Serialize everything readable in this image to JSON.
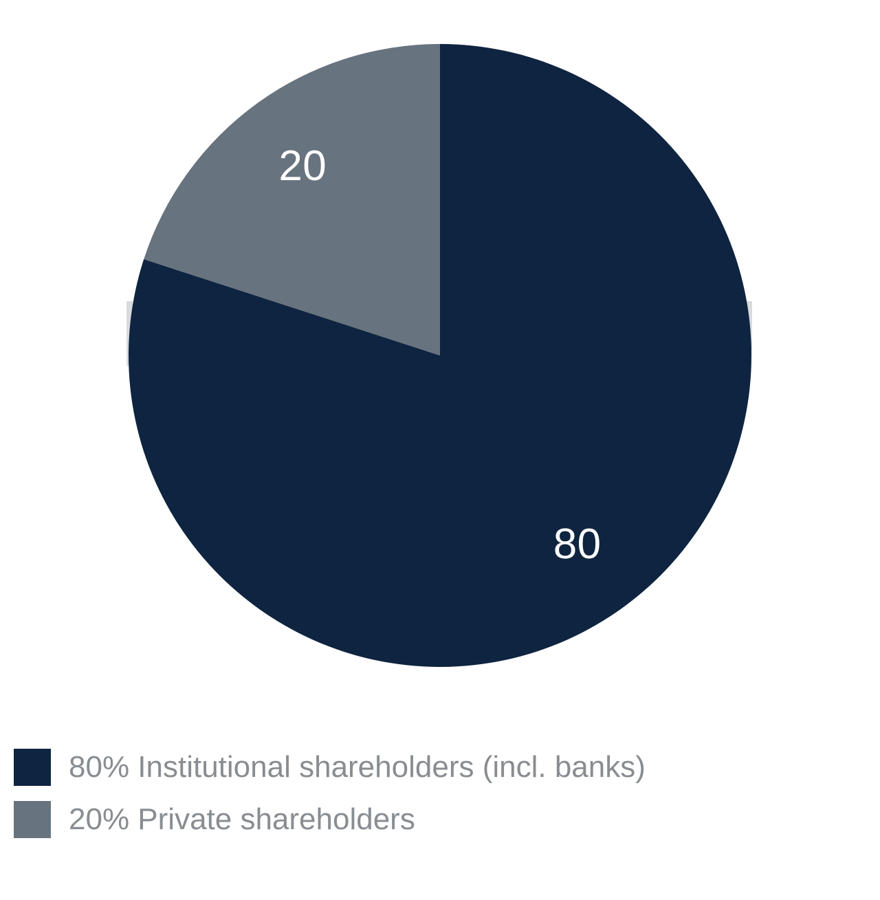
{
  "page": {
    "background_color": "#ffffff"
  },
  "chart_data": {
    "type": "pie",
    "categories": [
      "Institutional shareholders (incl. banks)",
      "Private shareholders"
    ],
    "values": [
      80,
      20
    ],
    "slice_labels": [
      "80",
      "20"
    ],
    "colors": [
      "#0f2440",
      "#67737e"
    ],
    "slice_label_color": "#ffffff",
    "start_angle_deg": 0,
    "direction": "clockwise",
    "label_radius_fraction": 0.75,
    "title": "",
    "legend_position": "bottom-left"
  },
  "legend": {
    "items": [
      {
        "label": "80% Institutional shareholders (incl. banks)",
        "color": "#0f2440"
      },
      {
        "label": "20% Private shareholders",
        "color": "#67737e"
      }
    ],
    "text_color": "#898d91"
  }
}
